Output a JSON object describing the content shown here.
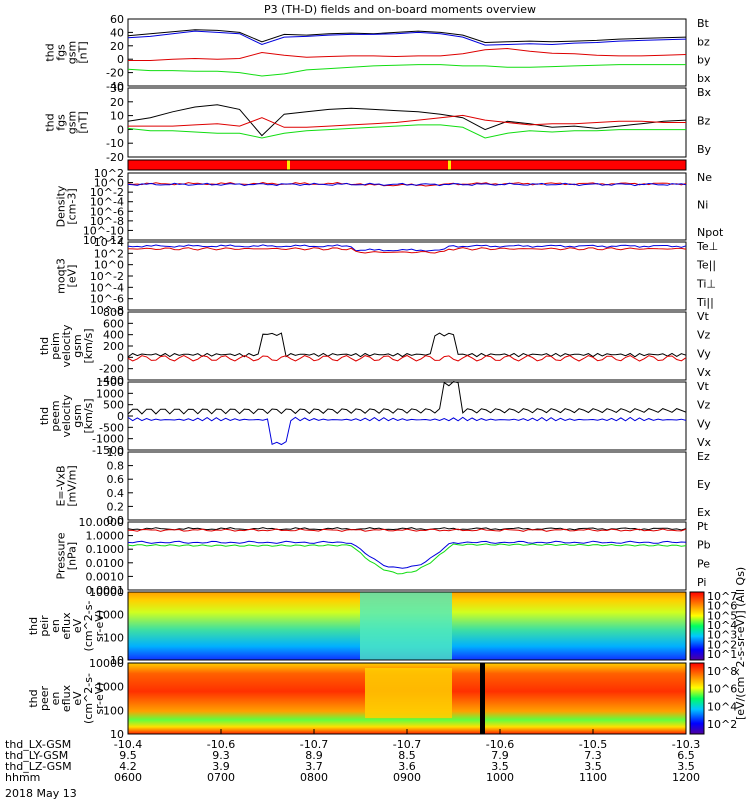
{
  "title": "P3 (TH-D) fields and on-board moments overview",
  "date_label": "2018 May 13",
  "colors": {
    "black": "#000000",
    "red": "#dd0000",
    "green": "#11dd11",
    "blue": "#0000dd",
    "bar_red": "#ff0000",
    "bar_yellow": "#ffee00"
  },
  "time_axis": {
    "ticks": [
      "0600",
      "0700",
      "0800",
      "0900",
      "1000",
      "1100",
      "1200"
    ],
    "rows": [
      {
        "label": "thd_LX-GSM",
        "values": [
          "-10.4",
          "-10.6",
          "-10.7",
          "-10.7",
          "-10.6",
          "-10.5",
          "-10.3"
        ]
      },
      {
        "label": "thd_LY-GSM",
        "values": [
          "9.5",
          "9.3",
          "8.9",
          "8.5",
          "7.9",
          "7.3",
          "6.5"
        ]
      },
      {
        "label": "thd_LZ-GSM",
        "values": [
          "4.2",
          "3.9",
          "3.7",
          "3.6",
          "3.5",
          "3.5",
          "3.5"
        ]
      },
      {
        "label": "hhmm",
        "values": [
          "0600",
          "0700",
          "0800",
          "0900",
          "1000",
          "1100",
          "1200"
        ]
      }
    ]
  },
  "chart_data": [
    {
      "type": "line",
      "ylabel": [
        "thd",
        "fgs",
        "gsm",
        "[nT]"
      ],
      "yticks": [
        "60",
        "40",
        "20",
        "0",
        "-20",
        "-40"
      ],
      "ylim": [
        -40,
        60
      ],
      "series": [
        {
          "name": "Bt",
          "color": "black",
          "values": [
            35,
            38,
            41,
            44,
            43,
            40,
            26,
            37,
            36,
            38,
            39,
            38,
            40,
            42,
            40,
            36,
            25,
            26,
            27,
            26,
            27,
            28,
            30,
            31,
            32,
            33
          ]
        },
        {
          "name": "bz",
          "color": "red",
          "values": [
            -2,
            -2,
            0,
            1,
            0,
            1,
            10,
            6,
            3,
            4,
            5,
            5,
            4,
            5,
            5,
            8,
            14,
            16,
            12,
            9,
            8,
            6,
            5,
            5,
            6,
            7
          ]
        },
        {
          "name": "by",
          "color": "green",
          "values": [
            -15,
            -17,
            -17,
            -18,
            -18,
            -20,
            -25,
            -22,
            -16,
            -14,
            -12,
            -10,
            -9,
            -8,
            -8,
            -10,
            -10,
            -12,
            -12,
            -11,
            -10,
            -9,
            -8,
            -8,
            -8,
            -8
          ]
        },
        {
          "name": "bx",
          "color": "blue",
          "values": [
            32,
            34,
            38,
            42,
            40,
            38,
            22,
            33,
            34,
            36,
            37,
            37,
            38,
            40,
            38,
            33,
            21,
            22,
            23,
            22,
            24,
            25,
            27,
            28,
            29,
            30
          ]
        }
      ]
    },
    {
      "type": "line",
      "ylabel": [
        "thd",
        "fgs",
        "gsm",
        "[nT]"
      ],
      "yticks": [
        "30",
        "20",
        "10",
        "0",
        "-10",
        "-20"
      ],
      "ylim": [
        -28,
        30
      ],
      "series": [
        {
          "name": "Bx",
          "color": "black",
          "values": [
            2,
            5,
            10,
            14,
            16,
            12,
            -10,
            8,
            10,
            12,
            13,
            12,
            11,
            10,
            8,
            5,
            -5,
            2,
            0,
            -3,
            -2,
            -4,
            -2,
            0,
            2,
            3
          ]
        },
        {
          "name": "Bz",
          "color": "red",
          "values": [
            -2,
            -2,
            -2,
            -1,
            0,
            -2,
            5,
            -3,
            -3,
            -2,
            -1,
            0,
            1,
            3,
            5,
            7,
            3,
            1,
            -1,
            0,
            0,
            1,
            2,
            2,
            1,
            1
          ]
        },
        {
          "name": "By",
          "color": "green",
          "values": [
            -4,
            -6,
            -6,
            -7,
            -8,
            -8,
            -12,
            -8,
            -6,
            -5,
            -4,
            -3,
            -2,
            -1,
            -1,
            -3,
            -12,
            -8,
            -6,
            -7,
            -6,
            -6,
            -5,
            -5,
            -5,
            -5
          ]
        }
      ]
    },
    {
      "type": "heatmap",
      "name": "mode-bar"
    },
    {
      "type": "line",
      "ylabel": [
        "Density",
        "[cm-3]"
      ],
      "yticks": [
        "10^2",
        "10^0",
        "10^-2",
        "10^-4",
        "10^-6",
        "10^-8",
        "10^-10",
        "10^-12"
      ],
      "series": [
        {
          "name": "Ne",
          "color": "red"
        },
        {
          "name": "Ni",
          "color": "black"
        },
        {
          "name": "Npot",
          "color": "blue"
        }
      ]
    },
    {
      "type": "line",
      "ylabel": [
        "moqt3",
        "[eV]"
      ],
      "yticks": [
        "10^4",
        "10^2",
        "10^0",
        "10^-2",
        "10^-4",
        "10^-6",
        "10^-8"
      ],
      "series": [
        {
          "name": "Te⊥",
          "color": "red"
        },
        {
          "name": "Te||",
          "color": "black"
        },
        {
          "name": "Ti⊥",
          "color": "blue"
        },
        {
          "name": "Ti||",
          "color": "green"
        }
      ]
    },
    {
      "type": "line",
      "ylabel": [
        "thd",
        "peim",
        "velocity",
        "gsm",
        "[km/s]"
      ],
      "yticks": [
        "800",
        "600",
        "400",
        "200",
        "0",
        "-200",
        "-400"
      ],
      "ylim": [
        -400,
        800
      ],
      "series": [
        {
          "name": "Vt",
          "color": "black"
        },
        {
          "name": "Vz",
          "color": "red"
        },
        {
          "name": "Vy",
          "color": "green"
        },
        {
          "name": "Vx",
          "color": "blue"
        }
      ]
    },
    {
      "type": "line",
      "ylabel": [
        "thd",
        "peem",
        "velocity",
        "gsm",
        "[km/s]"
      ],
      "yticks": [
        "1500",
        "1000",
        "500",
        "0",
        "-500",
        "-1000",
        "-1500"
      ],
      "ylim": [
        -1500,
        1500
      ],
      "series": [
        {
          "name": "Vt",
          "color": "black"
        },
        {
          "name": "Vz",
          "color": "red"
        },
        {
          "name": "Vy",
          "color": "green"
        },
        {
          "name": "Vx",
          "color": "blue"
        }
      ]
    },
    {
      "type": "line",
      "ylabel": [
        "E=-VxB",
        "[mV/m]"
      ],
      "yticks": [
        "1.0",
        "0.8",
        "0.6",
        "0.4",
        "0.2",
        "0.0"
      ],
      "ylim": [
        0,
        1
      ],
      "series": [
        {
          "name": "Ez",
          "color": "red"
        },
        {
          "name": "Ey",
          "color": "green"
        },
        {
          "name": "Ex",
          "color": "blue"
        }
      ]
    },
    {
      "type": "line",
      "ylabel": [
        "Pressure",
        "[nPa]"
      ],
      "yticks": [
        "10.0000",
        "1.0000",
        "0.1000",
        "0.0100",
        "0.0010",
        "0.0001"
      ],
      "series": [
        {
          "name": "Pt",
          "color": "black"
        },
        {
          "name": "Pb",
          "color": "red"
        },
        {
          "name": "Pe",
          "color": "green"
        },
        {
          "name": "Pi",
          "color": "blue"
        }
      ]
    },
    {
      "type": "heatmap",
      "ylabel": [
        "thd",
        "peir",
        "en",
        "eflux",
        "eV",
        "(cm^2-s-",
        "sr-eV)"
      ],
      "yticks": [
        "10000",
        "1000",
        "100",
        "10"
      ],
      "colorbar_ticks": [
        "10^7",
        "10^6",
        "10^5",
        "10^4",
        "10^3",
        "10^2",
        "10^1"
      ],
      "colorbar_label": "[eV/(cm^2-s-sr-eV)] (All Qs)"
    },
    {
      "type": "heatmap",
      "ylabel": [
        "thd",
        "peer",
        "en",
        "eflux",
        "eV",
        "(cm^2-s-",
        "sr-eV)"
      ],
      "yticks": [
        "10000",
        "1000",
        "100",
        "10"
      ],
      "colorbar_ticks": [
        "10^8",
        "10^6",
        "10^4",
        "10^2"
      ],
      "colorbar_label": "[eV/(cm^2-s-sr-eV)] (All Qs)"
    }
  ]
}
